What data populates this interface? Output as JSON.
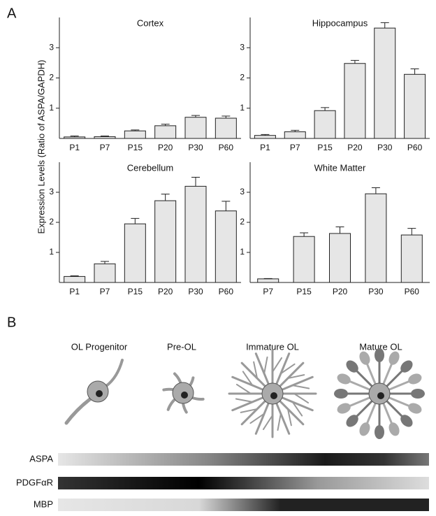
{
  "panel_labels": [
    "A",
    "B"
  ],
  "y_label": "Expression Levels (Ratio of ASPA/GAPDH)",
  "chart_data": [
    {
      "type": "bar",
      "title": "Cortex",
      "categories": [
        "P1",
        "P7",
        "P15",
        "P20",
        "P30",
        "P60"
      ],
      "values": [
        0.05,
        0.06,
        0.25,
        0.42,
        0.7,
        0.67
      ],
      "errors": [
        0.03,
        0.02,
        0.03,
        0.05,
        0.06,
        0.07
      ],
      "color": "#e6e6e6",
      "ylim": [
        0,
        4
      ],
      "yticks": [
        1,
        2,
        3
      ]
    },
    {
      "type": "bar",
      "title": "Hippocampus",
      "categories": [
        "P1",
        "P7",
        "P15",
        "P20",
        "P30",
        "P60"
      ],
      "values": [
        0.1,
        0.22,
        0.92,
        2.48,
        3.65,
        2.12
      ],
      "errors": [
        0.03,
        0.05,
        0.1,
        0.1,
        0.18,
        0.18
      ],
      "color": "#e6e6e6",
      "ylim": [
        0,
        4
      ],
      "yticks": [
        1,
        2,
        3
      ]
    },
    {
      "type": "bar",
      "title": "Cerebellum",
      "categories": [
        "P1",
        "P7",
        "P15",
        "P20",
        "P30",
        "P60"
      ],
      "values": [
        0.2,
        0.62,
        1.95,
        2.72,
        3.2,
        2.38
      ],
      "errors": [
        0.02,
        0.08,
        0.18,
        0.22,
        0.3,
        0.32
      ],
      "color": "#e6e6e6",
      "ylim": [
        0,
        4
      ],
      "yticks": [
        1,
        2,
        3
      ]
    },
    {
      "type": "bar",
      "title": "White Matter",
      "categories": [
        "P7",
        "P15",
        "P20",
        "P30",
        "P60"
      ],
      "values": [
        0.12,
        1.53,
        1.63,
        2.95,
        1.58
      ],
      "errors": [
        0.01,
        0.12,
        0.22,
        0.2,
        0.22
      ],
      "color": "#e6e6e6",
      "ylim": [
        0,
        4
      ],
      "yticks": [
        1,
        2,
        3
      ]
    }
  ],
  "stages": [
    "OL Progenitor",
    "Pre-OL",
    "Immature OL",
    "Mature OL"
  ],
  "markers": [
    "ASPA",
    "PDGFαR",
    "MBP"
  ]
}
